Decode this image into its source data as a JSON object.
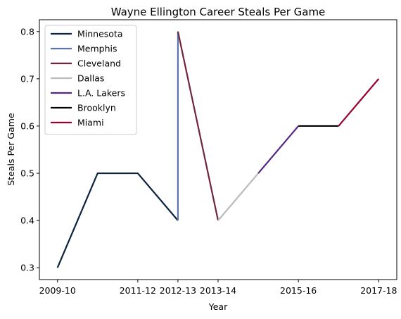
{
  "chart_data": {
    "type": "line",
    "title": "Wayne Ellington Career Steals Per Game",
    "xlabel": "Year",
    "ylabel": "Steals Per Game",
    "x_ticks": [
      "2009-10",
      "2011-12",
      "2012-13",
      "2013-14",
      "2015-16",
      "2017-18"
    ],
    "y_ticks": [
      0.3,
      0.4,
      0.5,
      0.6,
      0.7,
      0.8
    ],
    "ylim": [
      0.275,
      0.825
    ],
    "grid": false,
    "legend_position": "top-left",
    "series": [
      {
        "name": "Minnesota",
        "color": "#0c2340",
        "points": [
          {
            "x": "2009-10",
            "y": 0.3
          },
          {
            "x": "2010-11",
            "y": 0.5
          },
          {
            "x": "2011-12",
            "y": 0.5
          },
          {
            "x": "2012-13",
            "y": 0.4
          }
        ]
      },
      {
        "name": "Memphis",
        "color": "#5d76a9",
        "points": [
          {
            "x": "2012-13",
            "y": 0.4
          },
          {
            "x": "2012-13",
            "y": 0.8
          }
        ]
      },
      {
        "name": "Cleveland",
        "color": "#6f263d",
        "points": [
          {
            "x": "2012-13",
            "y": 0.8
          },
          {
            "x": "2013-14",
            "y": 0.4
          }
        ]
      },
      {
        "name": "Dallas",
        "color": "#bbbbbb",
        "points": [
          {
            "x": "2013-14",
            "y": 0.4
          },
          {
            "x": "2014-15",
            "y": 0.5
          }
        ]
      },
      {
        "name": "L.A. Lakers",
        "color": "#552583",
        "points": [
          {
            "x": "2014-15",
            "y": 0.5
          },
          {
            "x": "2015-16",
            "y": 0.6
          }
        ]
      },
      {
        "name": "Brooklyn",
        "color": "#000000",
        "points": [
          {
            "x": "2015-16",
            "y": 0.6
          },
          {
            "x": "2016-17",
            "y": 0.6
          }
        ]
      },
      {
        "name": "Miami",
        "color": "#98002e",
        "points": [
          {
            "x": "2016-17",
            "y": 0.6
          },
          {
            "x": "2017-18",
            "y": 0.7
          }
        ]
      }
    ]
  }
}
